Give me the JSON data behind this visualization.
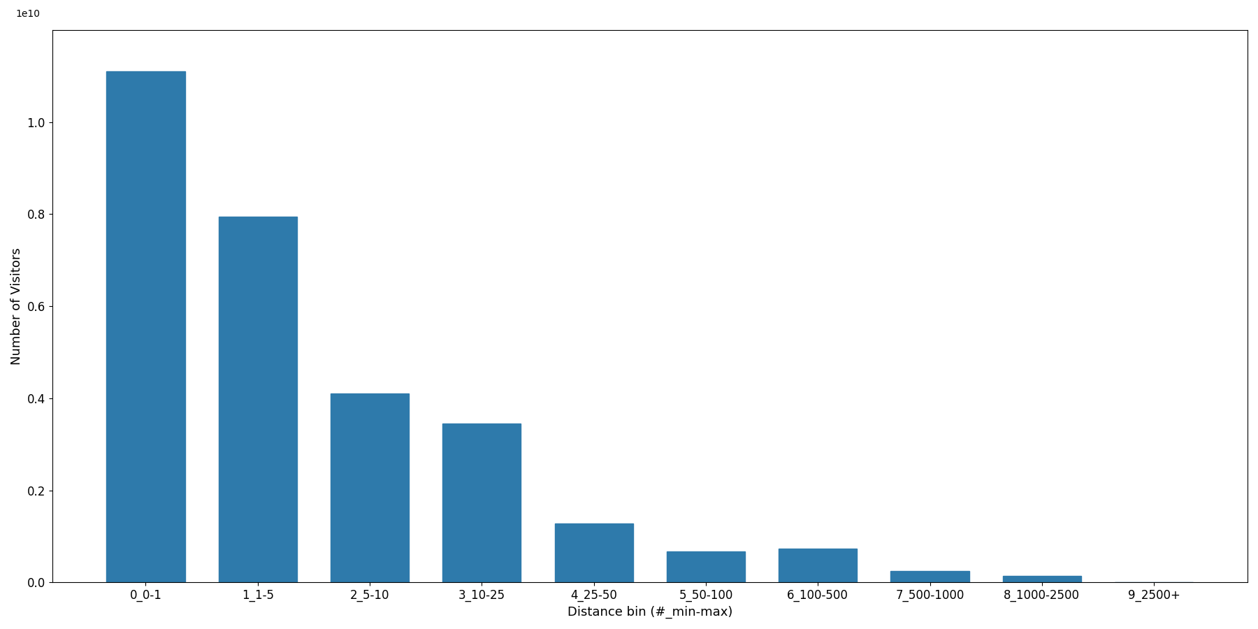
{
  "categories": [
    "0_0-1",
    "1_1-5",
    "2_5-10",
    "3_10-25",
    "4_25-50",
    "5_50-100",
    "6_100-500",
    "7_500-1000",
    "8_1000-2500",
    "9_2500+"
  ],
  "values": [
    11100000000,
    7950000000,
    4100000000,
    3450000000,
    1280000000,
    680000000,
    730000000,
    250000000,
    150000000,
    10000000
  ],
  "bar_color": "#2e7aab",
  "xlabel": "Distance bin (#_min-max)",
  "ylabel": "Number of Visitors",
  "background_color": "#ffffff",
  "ylim": [
    0,
    12000000000
  ],
  "figsize": [
    18.0,
    9.0
  ],
  "dpi": 100,
  "yticks": [
    0.0,
    0.2,
    0.4,
    0.6,
    0.8,
    1.0
  ],
  "ytick_scale": 10000000000
}
